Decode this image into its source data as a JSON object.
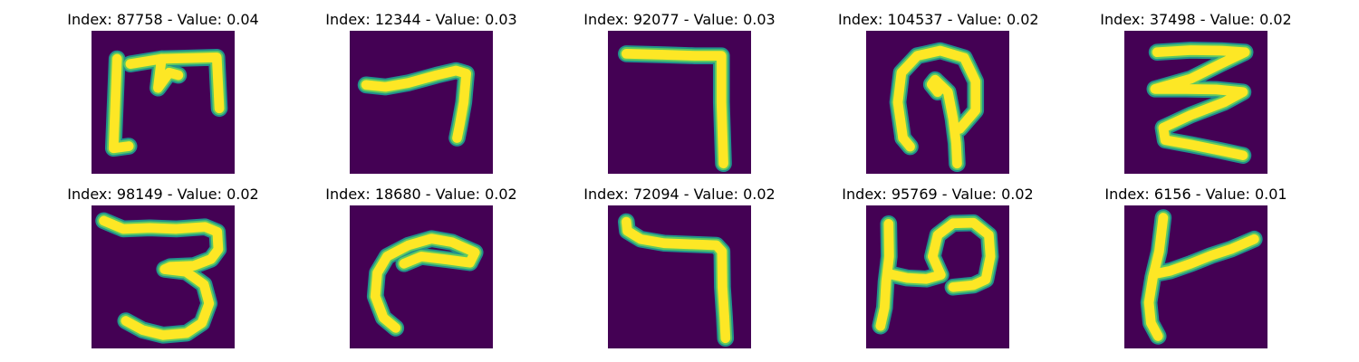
{
  "figure": {
    "background_color": "#440154",
    "stroke_core_color": "#fde725",
    "stroke_mid_color": "#5ec962",
    "stroke_edge_color": "#21918c",
    "panels": [
      {
        "title": "Index: 87758 - Value: 0.04",
        "index": 87758,
        "value": 0.04
      },
      {
        "title": "Index: 12344 - Value: 0.03",
        "index": 12344,
        "value": 0.03
      },
      {
        "title": "Index: 92077 - Value: 0.03",
        "index": 92077,
        "value": 0.03
      },
      {
        "title": "Index: 104537 - Value: 0.02",
        "index": 104537,
        "value": 0.02
      },
      {
        "title": "Index: 37498 - Value: 0.02",
        "index": 37498,
        "value": 0.02
      },
      {
        "title": "Index: 98149 - Value: 0.02",
        "index": 98149,
        "value": 0.02
      },
      {
        "title": "Index: 18680 - Value: 0.02",
        "index": 18680,
        "value": 0.02
      },
      {
        "title": "Index: 72094 - Value: 0.02",
        "index": 72094,
        "value": 0.02
      },
      {
        "title": "Index: 95769 - Value: 0.02",
        "index": 95769,
        "value": 0.02
      },
      {
        "title": "Index: 6156 - Value: 0.01",
        "index": 6156,
        "value": 0.01
      }
    ]
  }
}
